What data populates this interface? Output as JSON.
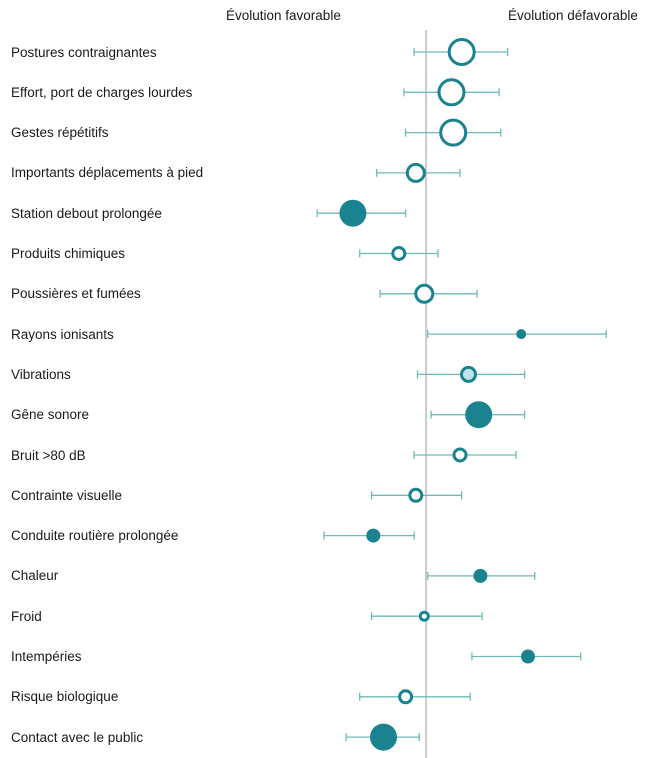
{
  "colors": {
    "teal": "#1a838f",
    "whisker": "#6fbab7",
    "light_fill": "#bfe3ea",
    "axis": "#999999"
  },
  "header": {
    "left": "Évolution favorable",
    "right": "Évolution défavorable"
  },
  "chart_data": {
    "type": "scatter",
    "title": "",
    "xlabel": "",
    "ylabel": "",
    "reference_value": 1.0,
    "categories": [
      "Postures contraignantes",
      "Effort, port de charges lourdes",
      "Gestes répétitifs",
      "Importants déplacements à pied",
      "Station debout prolongée",
      "Produits chimiques",
      "Poussières et fumées",
      "Rayons ionisants",
      "Vibrations",
      "Gêne sonore",
      "Bruit >80 dB",
      "Contrainte visuelle",
      "Conduite routière prolongée",
      "Chaleur",
      "Froid",
      "Intempéries",
      "Risque biologique",
      "Contact avec le public"
    ],
    "points": [
      {
        "value": 1.21,
        "low": 0.93,
        "high": 1.48,
        "style": "open",
        "size": 3
      },
      {
        "value": 1.15,
        "low": 0.87,
        "high": 1.43,
        "style": "open",
        "size": 3
      },
      {
        "value": 1.16,
        "low": 0.88,
        "high": 1.44,
        "style": "open",
        "size": 3
      },
      {
        "value": 0.94,
        "low": 0.71,
        "high": 1.2,
        "style": "open",
        "size": 2
      },
      {
        "value": 0.57,
        "low": 0.36,
        "high": 0.88,
        "style": "filled",
        "size": 3
      },
      {
        "value": 0.84,
        "low": 0.61,
        "high": 1.07,
        "style": "open",
        "size": 1
      },
      {
        "value": 0.99,
        "low": 0.73,
        "high": 1.3,
        "style": "open",
        "size": 2
      },
      {
        "value": 1.56,
        "low": 1.01,
        "high": 2.06,
        "style": "filled",
        "size": 0
      },
      {
        "value": 1.25,
        "low": 0.95,
        "high": 1.58,
        "style": "light",
        "size": 1
      },
      {
        "value": 1.31,
        "low": 1.03,
        "high": 1.58,
        "style": "filled",
        "size": 3
      },
      {
        "value": 1.2,
        "low": 0.93,
        "high": 1.53,
        "style": "open",
        "size": 1
      },
      {
        "value": 0.94,
        "low": 0.68,
        "high": 1.21,
        "style": "open",
        "size": 1
      },
      {
        "value": 0.69,
        "low": 0.4,
        "high": 0.93,
        "style": "filled",
        "size": 1
      },
      {
        "value": 1.32,
        "low": 1.01,
        "high": 1.64,
        "style": "filled",
        "size": 1
      },
      {
        "value": 0.99,
        "low": 0.68,
        "high": 1.33,
        "style": "open",
        "size": 0
      },
      {
        "value": 1.6,
        "low": 1.27,
        "high": 1.91,
        "style": "filled",
        "size": 1
      },
      {
        "value": 0.88,
        "low": 0.61,
        "high": 1.26,
        "style": "open",
        "size": 1
      },
      {
        "value": 0.75,
        "low": 0.53,
        "high": 0.96,
        "style": "filled",
        "size": 3
      }
    ]
  }
}
